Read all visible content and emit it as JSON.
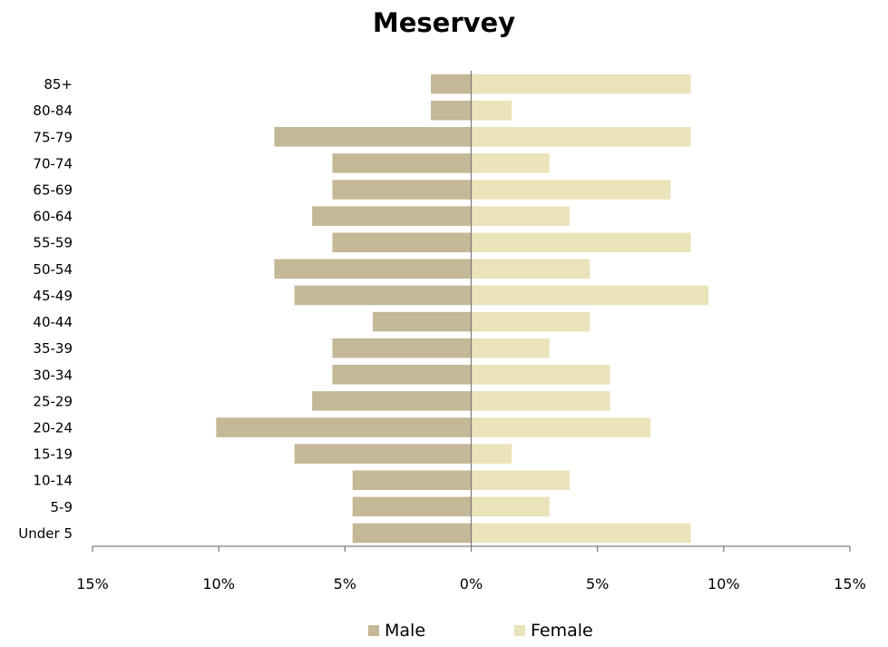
{
  "chart_data": {
    "type": "bar",
    "orientation": "horizontal",
    "title": "Meservey",
    "categories": [
      "85+",
      "80-84",
      "75-79",
      "70-74",
      "65-69",
      "60-64",
      "55-59",
      "50-54",
      "45-49",
      "40-44",
      "35-39",
      "30-34",
      "25-29",
      "20-24",
      "15-19",
      "10-14",
      "5-9",
      "Under 5"
    ],
    "series": [
      {
        "name": "Male",
        "color": "#c4b896",
        "values": [
          1.6,
          1.6,
          7.8,
          5.5,
          5.5,
          6.3,
          5.5,
          7.8,
          7.0,
          3.9,
          5.5,
          5.5,
          6.3,
          10.1,
          7.0,
          4.7,
          4.7,
          4.7
        ]
      },
      {
        "name": "Female",
        "color": "#ebe3b9",
        "values": [
          8.7,
          1.6,
          8.7,
          3.1,
          7.9,
          3.9,
          8.7,
          4.7,
          9.4,
          4.7,
          3.1,
          5.5,
          5.5,
          7.1,
          1.6,
          3.9,
          3.1,
          8.7
        ]
      }
    ],
    "xlim": [
      -15,
      15
    ],
    "x_ticks": [
      -15,
      -10,
      -5,
      0,
      5,
      10,
      15
    ],
    "x_tick_labels": [
      "15%",
      "10%",
      "5%",
      "0%",
      "5%",
      "10%",
      "15%"
    ],
    "xlabel": "",
    "ylabel": "",
    "grid": false,
    "legend_position": "bottom"
  }
}
